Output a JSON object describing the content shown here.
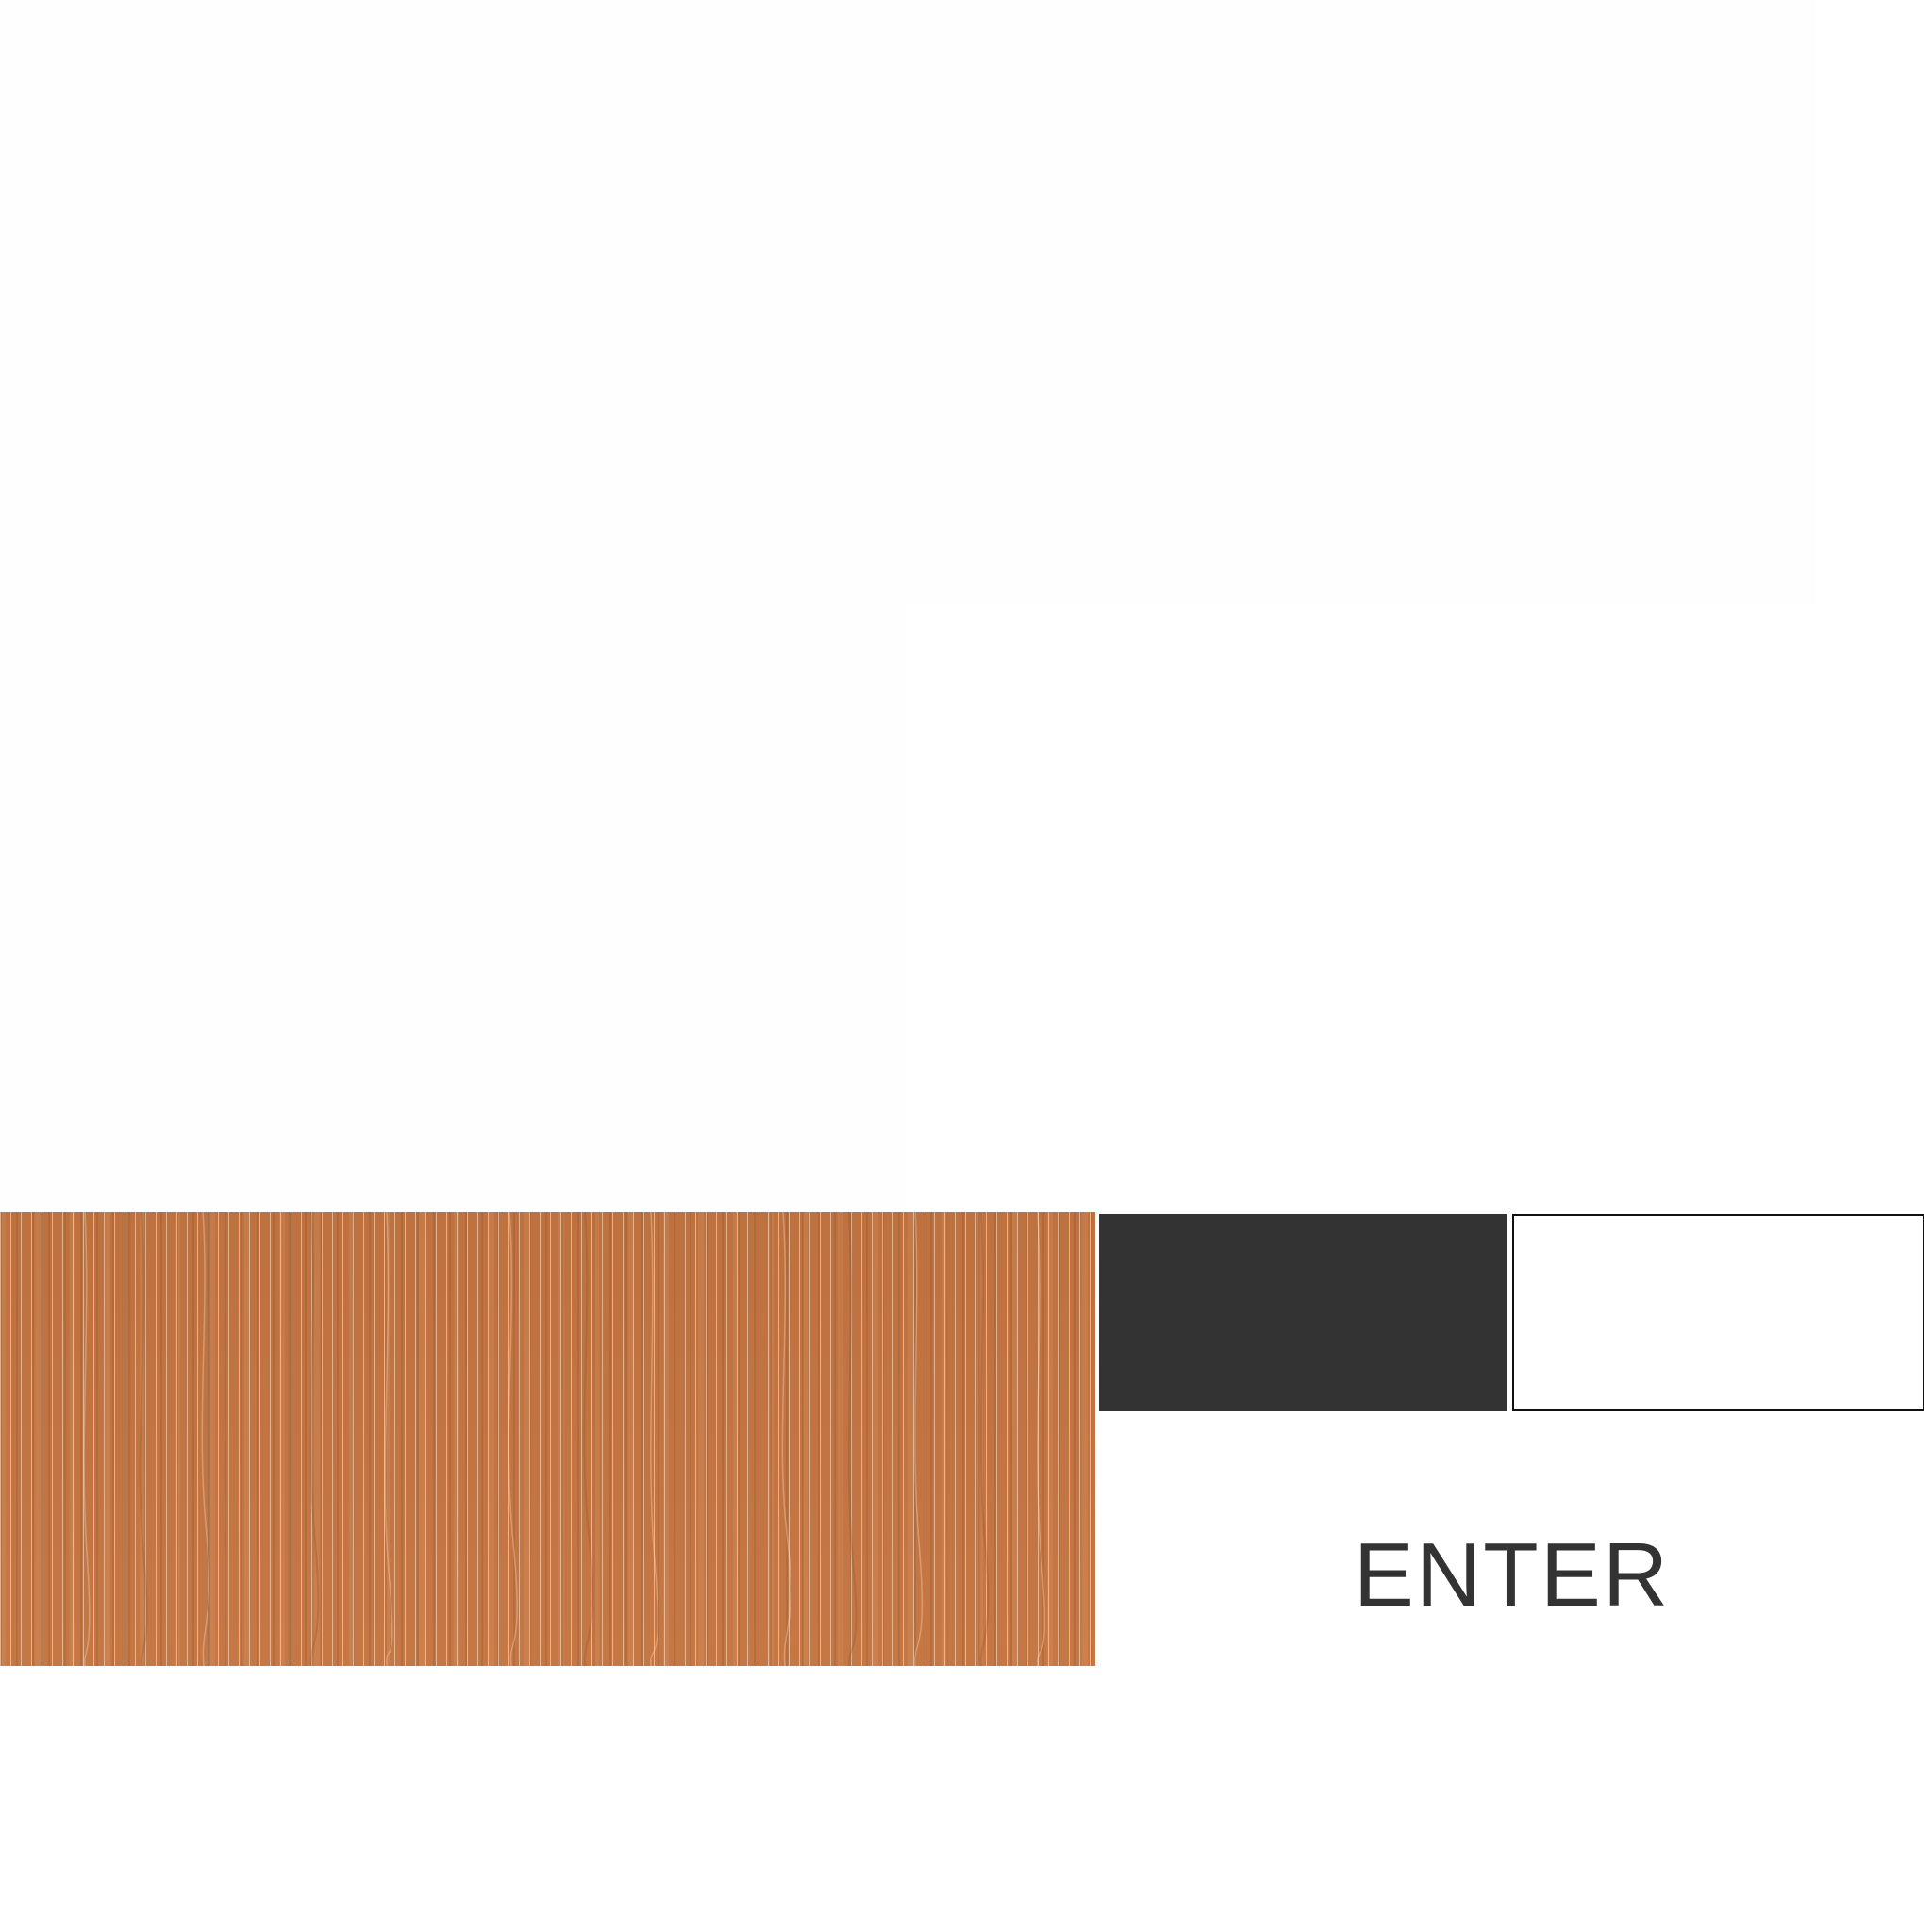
{
  "colors": {
    "background": "#ffffff",
    "panel": "#fefefe",
    "wood": "#c47541",
    "swatch_dark": "#333333",
    "swatch_light": "#ffffff",
    "text": "#333333"
  },
  "controls": {
    "enter_label": "ENTER"
  }
}
